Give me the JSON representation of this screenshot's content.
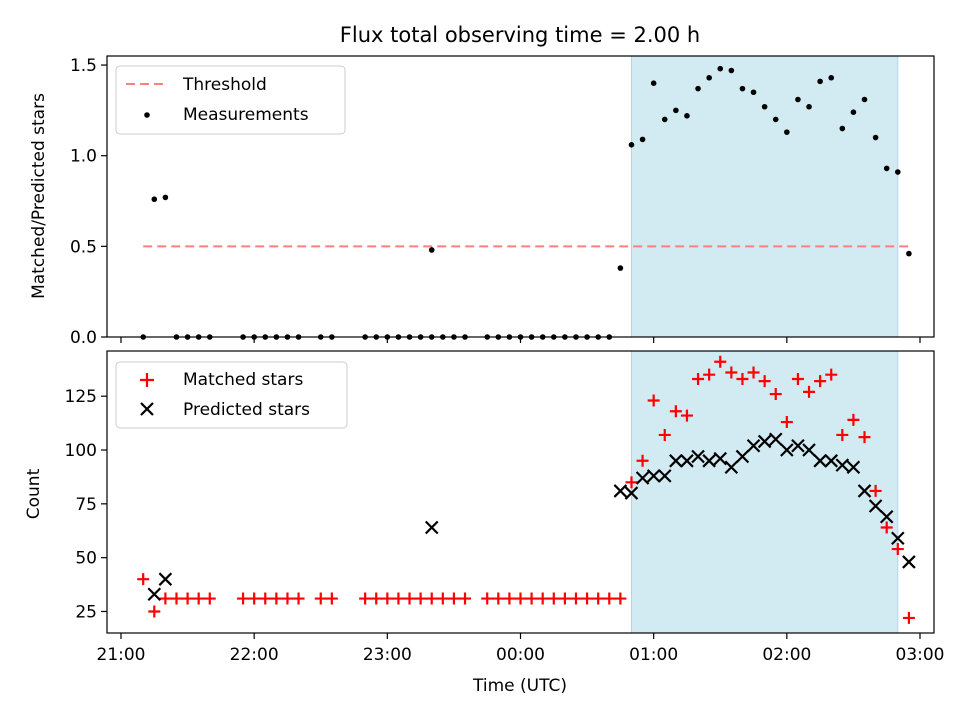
{
  "title": "Flux total observing time = 2.00 h",
  "colors": {
    "threshold": "#ff7f7f",
    "measurement": "#000000",
    "matched": "#ff0000",
    "predicted": "#000000",
    "shade": "#add8e6"
  },
  "chart_data": [
    {
      "type": "scatter",
      "xlabel": "",
      "ylabel": "Matched/Predicted stars",
      "xlim": [
        "21:00",
        "03:05"
      ],
      "ylim": [
        0,
        1.55
      ],
      "yticks": [
        "0.0",
        "0.5",
        "1.0",
        "1.5"
      ],
      "shaded_region": [
        "00:50",
        "02:50"
      ],
      "legend": {
        "position": "top-left",
        "entries": [
          "Threshold",
          "Measurements"
        ]
      },
      "threshold": {
        "name": "Threshold",
        "y": 0.5,
        "x": [
          "21:10",
          "02:55"
        ]
      },
      "series": [
        {
          "name": "Measurements",
          "points": [
            [
              "21:10",
              0
            ],
            [
              "21:15",
              0.76
            ],
            [
              "21:20",
              0.77
            ],
            [
              "21:25",
              0
            ],
            [
              "21:30",
              0
            ],
            [
              "21:35",
              0
            ],
            [
              "21:40",
              0
            ],
            [
              "21:55",
              0
            ],
            [
              "22:00",
              0
            ],
            [
              "22:05",
              0
            ],
            [
              "22:10",
              0
            ],
            [
              "22:15",
              0
            ],
            [
              "22:20",
              0
            ],
            [
              "22:30",
              0
            ],
            [
              "22:35",
              0
            ],
            [
              "22:50",
              0
            ],
            [
              "22:55",
              0
            ],
            [
              "23:00",
              0
            ],
            [
              "23:05",
              0
            ],
            [
              "23:10",
              0
            ],
            [
              "23:15",
              0
            ],
            [
              "23:20",
              0
            ],
            [
              "23:20",
              0.48
            ],
            [
              "23:25",
              0
            ],
            [
              "23:30",
              0
            ],
            [
              "23:35",
              0
            ],
            [
              "23:45",
              0
            ],
            [
              "23:50",
              0
            ],
            [
              "23:55",
              0
            ],
            [
              "00:00",
              0
            ],
            [
              "00:05",
              0
            ],
            [
              "00:10",
              0
            ],
            [
              "00:15",
              0
            ],
            [
              "00:20",
              0
            ],
            [
              "00:25",
              0
            ],
            [
              "00:30",
              0
            ],
            [
              "00:35",
              0
            ],
            [
              "00:40",
              0
            ],
            [
              "00:45",
              0.38
            ],
            [
              "00:50",
              1.06
            ],
            [
              "00:55",
              1.09
            ],
            [
              "01:00",
              1.4
            ],
            [
              "01:05",
              1.2
            ],
            [
              "01:10",
              1.25
            ],
            [
              "01:15",
              1.22
            ],
            [
              "01:20",
              1.37
            ],
            [
              "01:25",
              1.43
            ],
            [
              "01:30",
              1.48
            ],
            [
              "01:35",
              1.47
            ],
            [
              "01:40",
              1.37
            ],
            [
              "01:45",
              1.35
            ],
            [
              "01:50",
              1.27
            ],
            [
              "01:55",
              1.2
            ],
            [
              "02:00",
              1.13
            ],
            [
              "02:05",
              1.31
            ],
            [
              "02:10",
              1.27
            ],
            [
              "02:15",
              1.41
            ],
            [
              "02:20",
              1.43
            ],
            [
              "02:25",
              1.15
            ],
            [
              "02:30",
              1.24
            ],
            [
              "02:35",
              1.31
            ],
            [
              "02:40",
              1.1
            ],
            [
              "02:45",
              0.93
            ],
            [
              "02:50",
              0.91
            ],
            [
              "02:55",
              0.46
            ]
          ]
        }
      ]
    },
    {
      "type": "scatter",
      "xlabel": "Time (UTC)",
      "ylabel": "Count",
      "xlim": [
        "21:00",
        "03:05"
      ],
      "ylim": [
        15,
        146
      ],
      "xticks": [
        "21:00",
        "22:00",
        "23:00",
        "00:00",
        "01:00",
        "02:00",
        "03:00"
      ],
      "yticks": [
        "25",
        "50",
        "75",
        "100",
        "125"
      ],
      "shaded_region": [
        "00:50",
        "02:50"
      ],
      "legend": {
        "position": "top-left",
        "entries": [
          "Matched stars",
          "Predicted stars"
        ]
      },
      "series": [
        {
          "name": "Matched stars",
          "marker": "+",
          "points": [
            [
              "21:10",
              40
            ],
            [
              "21:15",
              25
            ],
            [
              "21:20",
              31
            ],
            [
              "21:25",
              31
            ],
            [
              "21:30",
              31
            ],
            [
              "21:35",
              31
            ],
            [
              "21:40",
              31
            ],
            [
              "21:55",
              31
            ],
            [
              "22:00",
              31
            ],
            [
              "22:05",
              31
            ],
            [
              "22:10",
              31
            ],
            [
              "22:15",
              31
            ],
            [
              "22:20",
              31
            ],
            [
              "22:30",
              31
            ],
            [
              "22:35",
              31
            ],
            [
              "22:50",
              31
            ],
            [
              "22:55",
              31
            ],
            [
              "23:00",
              31
            ],
            [
              "23:05",
              31
            ],
            [
              "23:10",
              31
            ],
            [
              "23:15",
              31
            ],
            [
              "23:20",
              31
            ],
            [
              "23:25",
              31
            ],
            [
              "23:30",
              31
            ],
            [
              "23:35",
              31
            ],
            [
              "23:45",
              31
            ],
            [
              "23:50",
              31
            ],
            [
              "23:55",
              31
            ],
            [
              "00:00",
              31
            ],
            [
              "00:05",
              31
            ],
            [
              "00:10",
              31
            ],
            [
              "00:15",
              31
            ],
            [
              "00:20",
              31
            ],
            [
              "00:25",
              31
            ],
            [
              "00:30",
              31
            ],
            [
              "00:35",
              31
            ],
            [
              "00:40",
              31
            ],
            [
              "00:45",
              31
            ],
            [
              "00:50",
              85
            ],
            [
              "00:55",
              95
            ],
            [
              "01:00",
              123
            ],
            [
              "01:05",
              107
            ],
            [
              "01:10",
              118
            ],
            [
              "01:15",
              116
            ],
            [
              "01:20",
              133
            ],
            [
              "01:25",
              135
            ],
            [
              "01:30",
              141
            ],
            [
              "01:35",
              136
            ],
            [
              "01:40",
              133
            ],
            [
              "01:45",
              136
            ],
            [
              "01:50",
              132
            ],
            [
              "01:55",
              126
            ],
            [
              "02:00",
              113
            ],
            [
              "02:05",
              133
            ],
            [
              "02:10",
              127
            ],
            [
              "02:15",
              132
            ],
            [
              "02:20",
              135
            ],
            [
              "02:25",
              107
            ],
            [
              "02:30",
              114
            ],
            [
              "02:35",
              106
            ],
            [
              "02:40",
              81
            ],
            [
              "02:45",
              64
            ],
            [
              "02:50",
              54
            ],
            [
              "02:55",
              22
            ]
          ]
        },
        {
          "name": "Predicted stars",
          "marker": "x",
          "points": [
            [
              "21:15",
              33
            ],
            [
              "21:20",
              40
            ],
            [
              "23:20",
              64
            ],
            [
              "00:45",
              81
            ],
            [
              "00:50",
              80
            ],
            [
              "00:55",
              87
            ],
            [
              "01:00",
              88
            ],
            [
              "01:05",
              88
            ],
            [
              "01:10",
              95
            ],
            [
              "01:15",
              95
            ],
            [
              "01:20",
              97
            ],
            [
              "01:25",
              95
            ],
            [
              "01:30",
              96
            ],
            [
              "01:35",
              92
            ],
            [
              "01:40",
              97
            ],
            [
              "01:45",
              102
            ],
            [
              "01:50",
              104
            ],
            [
              "01:55",
              105
            ],
            [
              "02:00",
              100
            ],
            [
              "02:05",
              102
            ],
            [
              "02:10",
              100
            ],
            [
              "02:15",
              95
            ],
            [
              "02:20",
              95
            ],
            [
              "02:25",
              93
            ],
            [
              "02:30",
              92
            ],
            [
              "02:35",
              81
            ],
            [
              "02:40",
              74
            ],
            [
              "02:45",
              69
            ],
            [
              "02:50",
              59
            ],
            [
              "02:55",
              48
            ]
          ]
        }
      ]
    }
  ]
}
